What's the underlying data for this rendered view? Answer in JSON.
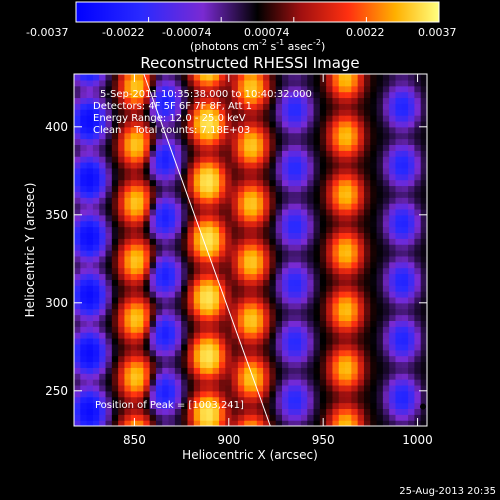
{
  "chart_data": {
    "type": "heatmap",
    "title": "Reconstructed RHESSI Image",
    "xlabel": "Heliocentric X (arcsec)",
    "ylabel": "Heliocentric Y (arcsec)",
    "xlim": [
      818,
      1005
    ],
    "ylim": [
      230,
      430
    ],
    "xticks": [
      850,
      900,
      950,
      1000
    ],
    "yticks": [
      250,
      300,
      350,
      400
    ],
    "colorbar": {
      "min": -0.0037,
      "max": 0.0037,
      "tick_labels": [
        "-0.0037",
        "-0.0022",
        "-0.00074",
        "0.00074",
        "0.0022",
        "0.0037"
      ],
      "unit_label_main": "(photons cm",
      "unit_exp1": "-2",
      "unit_s": " s",
      "unit_exp2": "-1",
      "unit_asec": " asec",
      "unit_exp3": "-2",
      "unit_close": ")"
    },
    "annotations": {
      "time_range": "5-Sep-2011 10:35:38.000 to 10:40:32.000",
      "detectors": "Detectors: 4F 5F 6F 7F 8F, Att 1",
      "energy_range": "Energy Range: 12.0 - 25.0 keV",
      "clean_totals": "Clean    Total counts: 7.18E+03",
      "peak_position": "Position of Peak = [1003,241]"
    },
    "limb_line": {
      "x": [
        855,
        922
      ],
      "y": [
        430,
        230
      ]
    },
    "peak": {
      "x": 1003,
      "y": 241
    },
    "pattern": {
      "description": "interference-like fringe pattern",
      "column_centers_x": [
        826,
        851,
        866,
        889,
        912,
        935,
        962,
        992
      ],
      "column_sign": [
        -1,
        1,
        -1,
        1,
        1,
        -1,
        1,
        -1
      ],
      "column_amplitude": [
        0.9,
        0.75,
        0.6,
        1.0,
        0.75,
        0.5,
        0.7,
        0.55
      ],
      "row_period_arcsec": 33
    }
  },
  "footer": {
    "timestamp": "25-Aug-2013 20:35"
  }
}
